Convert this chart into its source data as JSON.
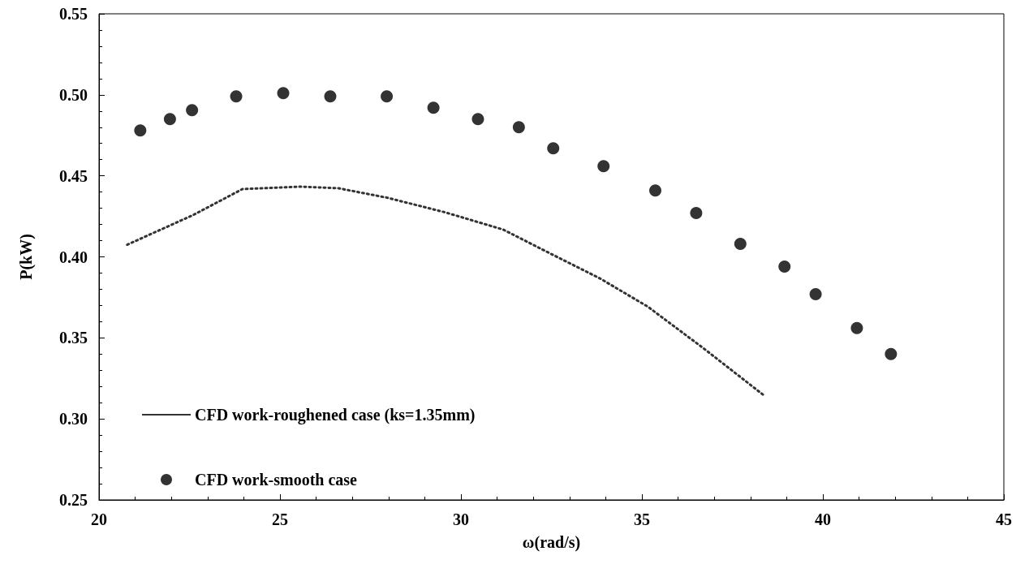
{
  "chart_data": {
    "type": "scatter",
    "xlabel": "ω(rad/s)",
    "ylabel": "P(kW)",
    "xlim": [
      20,
      45
    ],
    "xticks": [
      20,
      25,
      30,
      35,
      40,
      45
    ],
    "ylim": [
      0.25,
      0.55
    ],
    "yticks": [
      0.25,
      {
        "value": 0.3,
        "label": "0.30"
      },
      0.35,
      {
        "value": 0.4,
        "label": "0.40"
      },
      0.45,
      {
        "value": 0.5,
        "label": "0.50"
      },
      0.55
    ],
    "grid": false,
    "legend": "bottom left",
    "series": [
      {
        "name": "CFD work-roughened case (ks=1.35mm)",
        "type": "line",
        "color": "#333333",
        "marker": "none",
        "line_style": "dotted",
        "x": [
          20.78,
          22.6,
          23.96,
          25.56,
          26.6,
          27.96,
          29.56,
          31.17,
          32.51,
          33.84,
          35.16,
          36.7,
          38.4
        ],
        "values": [
          0.4075,
          0.4258,
          0.4418,
          0.4433,
          0.4424,
          0.4365,
          0.4275,
          0.4168,
          0.4016,
          0.3867,
          0.3693,
          0.3436,
          0.314
        ]
      },
      {
        "name": "CFD work-smooth case",
        "color": "#000000",
        "marker": "circle",
        "x": [
          21.14,
          21.96,
          22.57,
          23.79,
          25.09,
          26.39,
          27.95,
          29.24,
          30.47,
          31.6,
          32.55,
          33.94,
          35.37,
          36.5,
          37.72,
          38.94,
          39.8,
          40.94,
          41.88
        ],
        "values": [
          0.478,
          0.485,
          0.4905,
          0.499,
          0.501,
          0.499,
          0.499,
          0.492,
          0.485,
          0.48,
          0.467,
          0.456,
          0.441,
          0.427,
          0.408,
          0.394,
          0.377,
          0.356,
          0.34
        ]
      }
    ]
  }
}
